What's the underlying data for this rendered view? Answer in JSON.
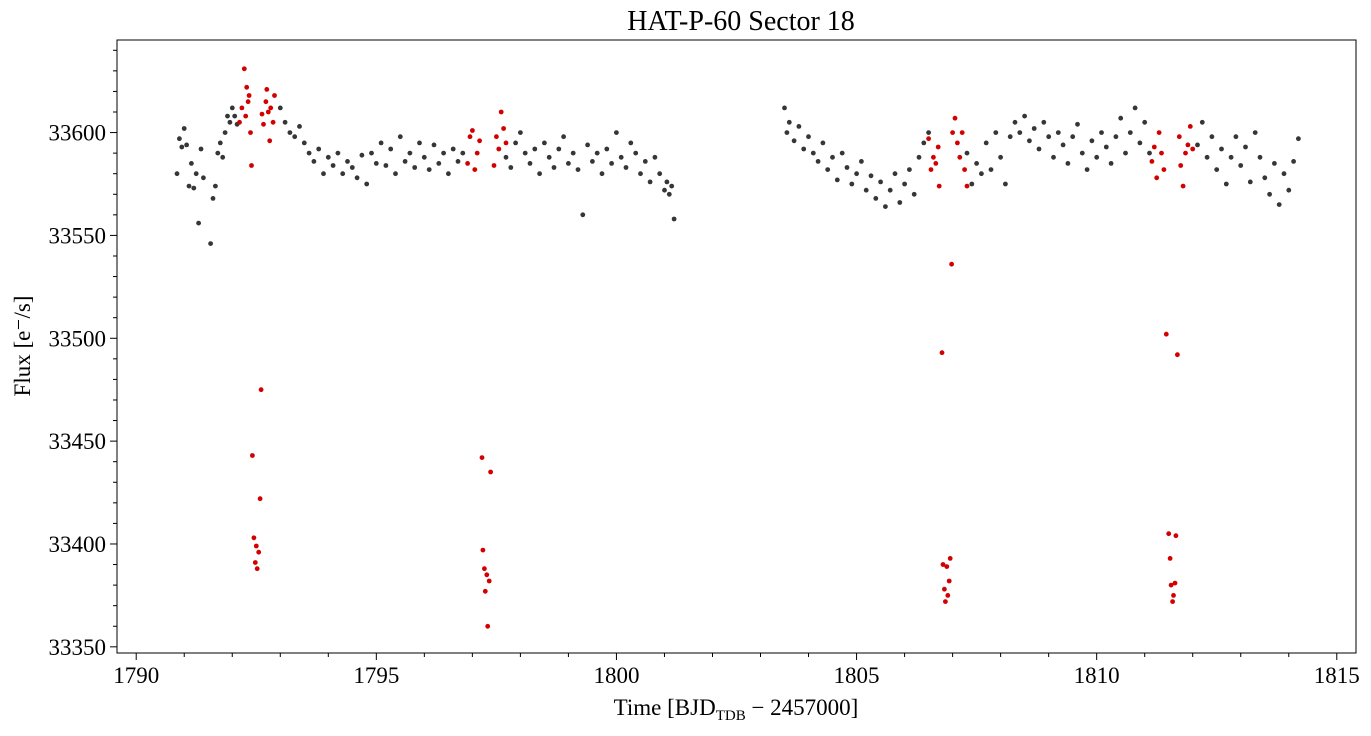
{
  "chart_data": {
    "type": "scatter",
    "title": "HAT-P-60 Sector 18",
    "xlabel": {
      "prefix": "Time [BJD",
      "sub": "TDB",
      "suffix": " − 2457000]"
    },
    "ylabel": "Flux [e⁻/s]",
    "xlim": [
      1789.6,
      1815.4
    ],
    "ylim": [
      33347,
      33645
    ],
    "x_ticks": [
      1790,
      1795,
      1800,
      1805,
      1810,
      1815
    ],
    "x_tick_labels": [
      "1790",
      "1795",
      "1800",
      "1805",
      "1810",
      "1815"
    ],
    "y_ticks": [
      33350,
      33400,
      33450,
      33500,
      33550,
      33600
    ],
    "y_tick_labels": [
      "33350",
      "33400",
      "33450",
      "33500",
      "33550",
      "33600"
    ],
    "grid": false,
    "legend": "none",
    "colors": {
      "out_of_transit": "#1a1a1a",
      "in_transit": "#d40000"
    },
    "series": [
      {
        "role": "out_of_transit",
        "points": [
          [
            1790.85,
            33580
          ],
          [
            1790.9,
            33597
          ],
          [
            1790.95,
            33593
          ],
          [
            1791.0,
            33602
          ],
          [
            1791.05,
            33594
          ],
          [
            1791.1,
            33574
          ],
          [
            1791.15,
            33585
          ],
          [
            1791.2,
            33573
          ],
          [
            1791.25,
            33580
          ],
          [
            1791.3,
            33556
          ],
          [
            1791.35,
            33592
          ],
          [
            1791.4,
            33578
          ],
          [
            1791.55,
            33546
          ],
          [
            1791.6,
            33568
          ],
          [
            1791.65,
            33574
          ],
          [
            1791.7,
            33590
          ],
          [
            1791.75,
            33595
          ],
          [
            1791.8,
            33588
          ],
          [
            1791.85,
            33600
          ],
          [
            1791.9,
            33608
          ],
          [
            1791.95,
            33605
          ],
          [
            1792.0,
            33612
          ],
          [
            1792.05,
            33608
          ],
          [
            1792.1,
            33604
          ],
          [
            1793.0,
            33612
          ],
          [
            1793.1,
            33605
          ],
          [
            1793.2,
            33600
          ],
          [
            1793.3,
            33598
          ],
          [
            1793.4,
            33603
          ],
          [
            1793.5,
            33595
          ],
          [
            1793.6,
            33590
          ],
          [
            1793.7,
            33586
          ],
          [
            1793.8,
            33592
          ],
          [
            1793.9,
            33580
          ],
          [
            1794.0,
            33588
          ],
          [
            1794.1,
            33584
          ],
          [
            1794.2,
            33590
          ],
          [
            1794.3,
            33580
          ],
          [
            1794.4,
            33586
          ],
          [
            1794.5,
            33583
          ],
          [
            1794.6,
            33578
          ],
          [
            1794.7,
            33589
          ],
          [
            1794.8,
            33575
          ],
          [
            1794.9,
            33590
          ],
          [
            1795.0,
            33585
          ],
          [
            1795.1,
            33595
          ],
          [
            1795.2,
            33584
          ],
          [
            1795.3,
            33592
          ],
          [
            1795.4,
            33580
          ],
          [
            1795.5,
            33598
          ],
          [
            1795.6,
            33586
          ],
          [
            1795.7,
            33590
          ],
          [
            1795.8,
            33583
          ],
          [
            1795.9,
            33595
          ],
          [
            1796.0,
            33588
          ],
          [
            1796.1,
            33582
          ],
          [
            1796.2,
            33594
          ],
          [
            1796.3,
            33585
          ],
          [
            1796.4,
            33590
          ],
          [
            1796.5,
            33580
          ],
          [
            1796.6,
            33592
          ],
          [
            1796.7,
            33586
          ],
          [
            1796.8,
            33590
          ],
          [
            1797.7,
            33588
          ],
          [
            1797.8,
            33583
          ],
          [
            1797.9,
            33595
          ],
          [
            1798.0,
            33600
          ],
          [
            1798.1,
            33590
          ],
          [
            1798.2,
            33585
          ],
          [
            1798.3,
            33592
          ],
          [
            1798.4,
            33580
          ],
          [
            1798.5,
            33595
          ],
          [
            1798.6,
            33588
          ],
          [
            1798.7,
            33583
          ],
          [
            1798.8,
            33592
          ],
          [
            1798.9,
            33598
          ],
          [
            1799.0,
            33585
          ],
          [
            1799.1,
            33590
          ],
          [
            1799.2,
            33582
          ],
          [
            1799.3,
            33560
          ],
          [
            1799.4,
            33594
          ],
          [
            1799.5,
            33586
          ],
          [
            1799.6,
            33590
          ],
          [
            1799.7,
            33580
          ],
          [
            1799.8,
            33592
          ],
          [
            1799.9,
            33585
          ],
          [
            1800.0,
            33600
          ],
          [
            1800.1,
            33588
          ],
          [
            1800.2,
            33583
          ],
          [
            1800.3,
            33595
          ],
          [
            1800.4,
            33590
          ],
          [
            1800.5,
            33580
          ],
          [
            1800.6,
            33586
          ],
          [
            1800.7,
            33576
          ],
          [
            1800.8,
            33588
          ],
          [
            1800.9,
            33580
          ],
          [
            1801.0,
            33572
          ],
          [
            1801.05,
            33576
          ],
          [
            1801.1,
            33570
          ],
          [
            1801.15,
            33574
          ],
          [
            1801.2,
            33558
          ],
          [
            1803.5,
            33612
          ],
          [
            1803.55,
            33600
          ],
          [
            1803.6,
            33605
          ],
          [
            1803.7,
            33596
          ],
          [
            1803.8,
            33603
          ],
          [
            1803.9,
            33592
          ],
          [
            1804.0,
            33598
          ],
          [
            1804.1,
            33590
          ],
          [
            1804.2,
            33586
          ],
          [
            1804.3,
            33595
          ],
          [
            1804.4,
            33582
          ],
          [
            1804.5,
            33588
          ],
          [
            1804.6,
            33577
          ],
          [
            1804.7,
            33590
          ],
          [
            1804.8,
            33583
          ],
          [
            1804.9,
            33575
          ],
          [
            1805.0,
            33580
          ],
          [
            1805.1,
            33586
          ],
          [
            1805.2,
            33572
          ],
          [
            1805.3,
            33579
          ],
          [
            1805.4,
            33568
          ],
          [
            1805.5,
            33576
          ],
          [
            1805.6,
            33564
          ],
          [
            1805.7,
            33572
          ],
          [
            1805.8,
            33580
          ],
          [
            1805.9,
            33566
          ],
          [
            1806.0,
            33575
          ],
          [
            1806.1,
            33582
          ],
          [
            1806.2,
            33570
          ],
          [
            1806.3,
            33588
          ],
          [
            1806.4,
            33595
          ],
          [
            1806.5,
            33600
          ],
          [
            1807.3,
            33590
          ],
          [
            1807.4,
            33575
          ],
          [
            1807.5,
            33585
          ],
          [
            1807.6,
            33580
          ],
          [
            1807.7,
            33595
          ],
          [
            1807.8,
            33582
          ],
          [
            1807.9,
            33600
          ],
          [
            1808.0,
            33588
          ],
          [
            1808.1,
            33575
          ],
          [
            1808.2,
            33598
          ],
          [
            1808.3,
            33605
          ],
          [
            1808.4,
            33600
          ],
          [
            1808.5,
            33608
          ],
          [
            1808.6,
            33596
          ],
          [
            1808.7,
            33602
          ],
          [
            1808.8,
            33592
          ],
          [
            1808.9,
            33605
          ],
          [
            1809.0,
            33598
          ],
          [
            1809.1,
            33588
          ],
          [
            1809.2,
            33600
          ],
          [
            1809.3,
            33594
          ],
          [
            1809.4,
            33585
          ],
          [
            1809.5,
            33598
          ],
          [
            1809.6,
            33604
          ],
          [
            1809.7,
            33590
          ],
          [
            1809.8,
            33582
          ],
          [
            1809.9,
            33596
          ],
          [
            1810.0,
            33588
          ],
          [
            1810.1,
            33600
          ],
          [
            1810.2,
            33593
          ],
          [
            1810.3,
            33585
          ],
          [
            1810.4,
            33598
          ],
          [
            1810.5,
            33607
          ],
          [
            1810.6,
            33590
          ],
          [
            1810.7,
            33600
          ],
          [
            1810.8,
            33612
          ],
          [
            1810.9,
            33595
          ],
          [
            1811.0,
            33605
          ],
          [
            1811.1,
            33590
          ],
          [
            1812.1,
            33594
          ],
          [
            1812.2,
            33605
          ],
          [
            1812.3,
            33588
          ],
          [
            1812.4,
            33598
          ],
          [
            1812.5,
            33582
          ],
          [
            1812.6,
            33592
          ],
          [
            1812.7,
            33575
          ],
          [
            1812.8,
            33588
          ],
          [
            1812.9,
            33598
          ],
          [
            1813.0,
            33584
          ],
          [
            1813.1,
            33593
          ],
          [
            1813.2,
            33576
          ],
          [
            1813.3,
            33600
          ],
          [
            1813.4,
            33588
          ],
          [
            1813.5,
            33578
          ],
          [
            1813.6,
            33570
          ],
          [
            1813.7,
            33585
          ],
          [
            1813.8,
            33565
          ],
          [
            1813.9,
            33580
          ],
          [
            1814.0,
            33572
          ],
          [
            1814.1,
            33586
          ],
          [
            1814.2,
            33597
          ]
        ]
      },
      {
        "role": "in_transit",
        "points": [
          [
            1792.15,
            33605
          ],
          [
            1792.2,
            33612
          ],
          [
            1792.25,
            33631
          ],
          [
            1792.28,
            33608
          ],
          [
            1792.3,
            33622
          ],
          [
            1792.33,
            33615
          ],
          [
            1792.35,
            33618
          ],
          [
            1792.38,
            33600
          ],
          [
            1792.4,
            33584
          ],
          [
            1792.42,
            33443
          ],
          [
            1792.45,
            33403
          ],
          [
            1792.48,
            33391
          ],
          [
            1792.5,
            33399
          ],
          [
            1792.52,
            33388
          ],
          [
            1792.55,
            33396
          ],
          [
            1792.58,
            33422
          ],
          [
            1792.6,
            33475
          ],
          [
            1792.62,
            33609
          ],
          [
            1792.65,
            33604
          ],
          [
            1792.7,
            33615
          ],
          [
            1792.72,
            33621
          ],
          [
            1792.75,
            33610
          ],
          [
            1792.78,
            33596
          ],
          [
            1792.8,
            33612
          ],
          [
            1792.85,
            33605
          ],
          [
            1792.88,
            33618
          ],
          [
            1796.9,
            33585
          ],
          [
            1796.95,
            33598
          ],
          [
            1797.0,
            33601
          ],
          [
            1797.05,
            33582
          ],
          [
            1797.1,
            33590
          ],
          [
            1797.15,
            33596
          ],
          [
            1797.2,
            33442
          ],
          [
            1797.22,
            33397
          ],
          [
            1797.25,
            33388
          ],
          [
            1797.27,
            33377
          ],
          [
            1797.3,
            33385
          ],
          [
            1797.32,
            33360
          ],
          [
            1797.35,
            33382
          ],
          [
            1797.38,
            33435
          ],
          [
            1797.45,
            33584
          ],
          [
            1797.5,
            33598
          ],
          [
            1797.55,
            33592
          ],
          [
            1797.6,
            33610
          ],
          [
            1797.65,
            33602
          ],
          [
            1797.7,
            33595
          ],
          [
            1806.5,
            33597
          ],
          [
            1806.55,
            33582
          ],
          [
            1806.6,
            33588
          ],
          [
            1806.65,
            33585
          ],
          [
            1806.7,
            33593
          ],
          [
            1806.72,
            33574
          ],
          [
            1806.78,
            33493
          ],
          [
            1806.8,
            33390
          ],
          [
            1806.83,
            33378
          ],
          [
            1806.85,
            33372
          ],
          [
            1806.88,
            33389
          ],
          [
            1806.9,
            33375
          ],
          [
            1806.93,
            33382
          ],
          [
            1806.95,
            33393
          ],
          [
            1806.98,
            33536
          ],
          [
            1807.0,
            33600
          ],
          [
            1807.05,
            33607
          ],
          [
            1807.1,
            33595
          ],
          [
            1807.15,
            33588
          ],
          [
            1807.2,
            33600
          ],
          [
            1807.25,
            33582
          ],
          [
            1807.3,
            33574
          ],
          [
            1811.15,
            33586
          ],
          [
            1811.2,
            33593
          ],
          [
            1811.25,
            33578
          ],
          [
            1811.3,
            33600
          ],
          [
            1811.35,
            33590
          ],
          [
            1811.4,
            33582
          ],
          [
            1811.45,
            33502
          ],
          [
            1811.5,
            33405
          ],
          [
            1811.53,
            33393
          ],
          [
            1811.55,
            33380
          ],
          [
            1811.58,
            33372
          ],
          [
            1811.6,
            33375
          ],
          [
            1811.63,
            33381
          ],
          [
            1811.65,
            33404
          ],
          [
            1811.68,
            33492
          ],
          [
            1811.72,
            33598
          ],
          [
            1811.75,
            33584
          ],
          [
            1811.8,
            33574
          ],
          [
            1811.85,
            33590
          ],
          [
            1811.9,
            33594
          ],
          [
            1811.95,
            33603
          ],
          [
            1812.0,
            33592
          ]
        ]
      }
    ]
  }
}
